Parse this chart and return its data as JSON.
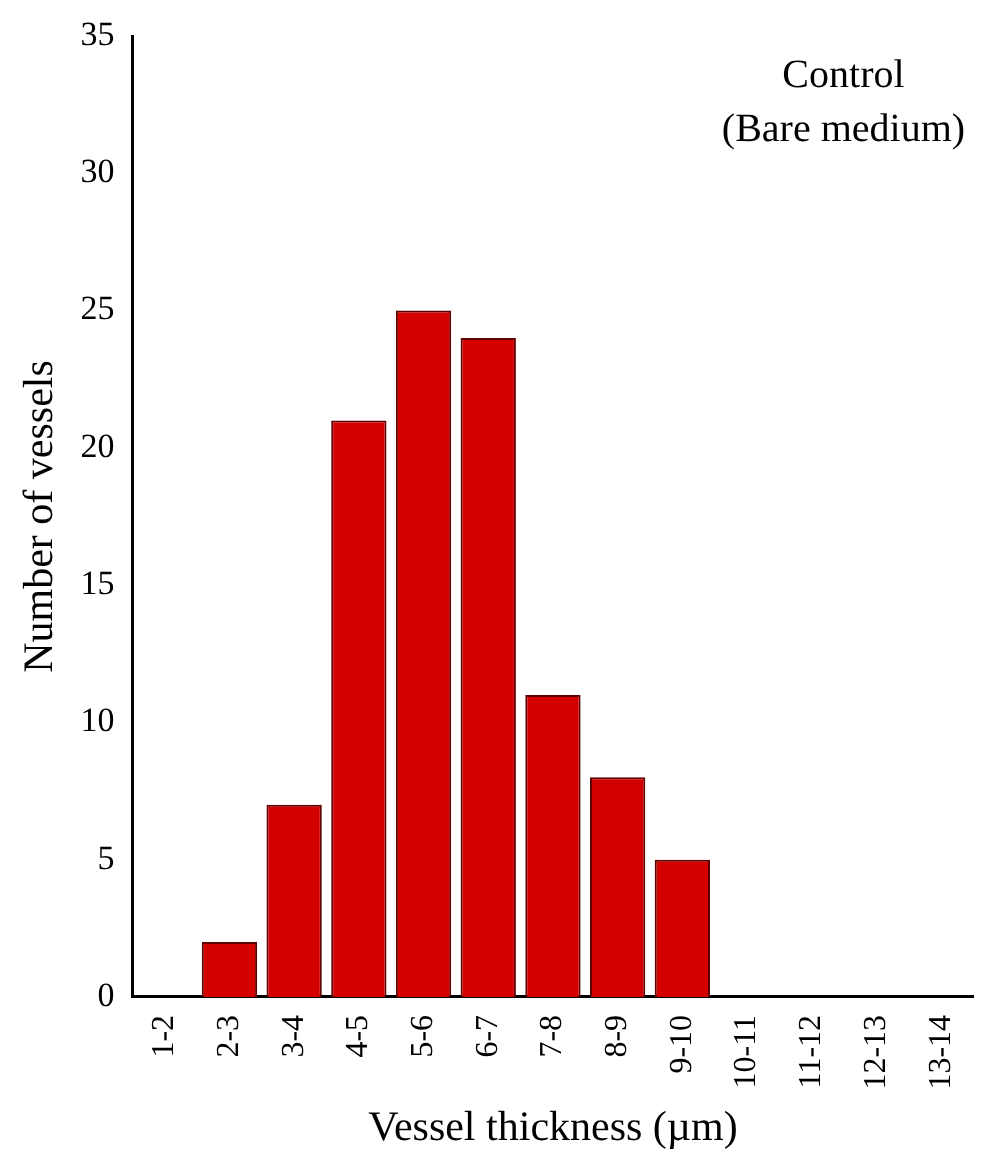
{
  "chart_data": {
    "type": "bar",
    "xlabel": "Vessel thickness (µm)",
    "ylabel": "Number of vessels",
    "annotations": [
      "Control",
      "(Bare medium)"
    ],
    "categories": [
      "1-2",
      "2-3",
      "3-4",
      "4-5",
      "5-6",
      "6-7",
      "7-8",
      "8-9",
      "9-10",
      "10-11",
      "11-12",
      "12-13",
      "13-14"
    ],
    "values": [
      0,
      2,
      7,
      21,
      25,
      24,
      11,
      8,
      5,
      0,
      0,
      0,
      0
    ],
    "color": "#d40000",
    "ylim": [
      0,
      35
    ],
    "yticks": [
      0,
      5,
      10,
      15,
      20,
      25,
      30,
      35
    ],
    "grid": false,
    "legend": false
  }
}
